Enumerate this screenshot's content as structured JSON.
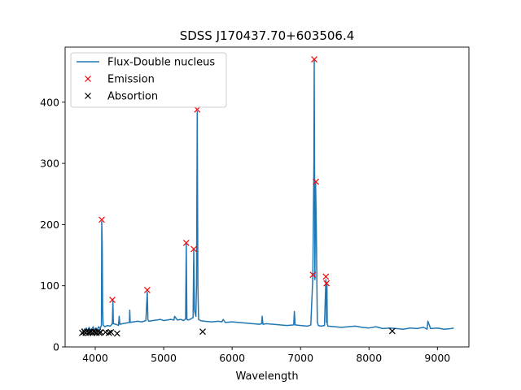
{
  "chart_data": {
    "type": "line",
    "title": "SDSS J170437.70+603506.4",
    "xlabel": "Wavelength",
    "ylabel": "",
    "xlim": [
      3560,
      9460
    ],
    "ylim": [
      0,
      490
    ],
    "xticks": [
      4000,
      5000,
      6000,
      7000,
      8000,
      9000
    ],
    "yticks": [
      0,
      100,
      200,
      300,
      400
    ],
    "legend_position": "upper-left",
    "series": [
      {
        "name": "Flux-Double nucleus",
        "kind": "line",
        "color": "#1f77b4",
        "x": [
          3810,
          3830,
          3850,
          3870,
          3890,
          3910,
          3930,
          3950,
          3970,
          3990,
          4010,
          4030,
          4050,
          4070,
          4090,
          4095,
          4102,
          4108,
          4115,
          4140,
          4180,
          4220,
          4250,
          4258,
          4265,
          4300,
          4340,
          4350,
          4360,
          4400,
          4450,
          4500,
          4505,
          4510,
          4560,
          4620,
          4680,
          4740,
          4760,
          4770,
          4780,
          4830,
          4900,
          4950,
          5000,
          5050,
          5100,
          5150,
          5160,
          5200,
          5250,
          5290,
          5320,
          5330,
          5340,
          5360,
          5400,
          5430,
          5440,
          5450,
          5470,
          5480,
          5490,
          5500,
          5510,
          5540,
          5600,
          5700,
          5800,
          5850,
          5870,
          5900,
          6000,
          6100,
          6200,
          6300,
          6400,
          6430,
          6440,
          6450,
          6500,
          6600,
          6700,
          6800,
          6900,
          6910,
          6920,
          7000,
          7100,
          7150,
          7180,
          7195,
          7200,
          7205,
          7210,
          7220,
          7230,
          7245,
          7260,
          7300,
          7350,
          7370,
          7375,
          7380,
          7385,
          7390,
          7400,
          7500,
          7600,
          7700,
          7800,
          7900,
          8000,
          8100,
          8200,
          8300,
          8400,
          8500,
          8600,
          8700,
          8800,
          8850,
          8860,
          8900,
          9000,
          9100,
          9200,
          9240
        ],
        "y": [
          30,
          22,
          28,
          31,
          25,
          32,
          27,
          29,
          33,
          26,
          31,
          28,
          33,
          30,
          35,
          205,
          165,
          60,
          36,
          33,
          35,
          34,
          38,
          75,
          38,
          37,
          35,
          50,
          37,
          38,
          39,
          40,
          60,
          40,
          41,
          42,
          41,
          43,
          90,
          45,
          42,
          43,
          44,
          45,
          43,
          44,
          45,
          44,
          50,
          44,
          45,
          43,
          46,
          168,
          45,
          44,
          46,
          48,
          158,
          60,
          50,
          100,
          385,
          100,
          45,
          43,
          42,
          41,
          42,
          41,
          45,
          40,
          41,
          40,
          39,
          38,
          37,
          38,
          50,
          37,
          38,
          37,
          36,
          35,
          36,
          58,
          36,
          35,
          34,
          36,
          115,
          300,
          468,
          300,
          110,
          268,
          200,
          40,
          35,
          34,
          35,
          110,
          95,
          40,
          105,
          38,
          34,
          33,
          32,
          33,
          34,
          32,
          31,
          33,
          30,
          31,
          30,
          29,
          31,
          30,
          32,
          29,
          42,
          30,
          31,
          29,
          30,
          31
        ]
      },
      {
        "name": "Emission",
        "kind": "marker",
        "marker": "x",
        "color": "#ff0000",
        "x": [
          4095,
          4250,
          4760,
          5330,
          5440,
          5490,
          7180,
          7200,
          7225,
          7370,
          7380
        ],
        "y": [
          208,
          77,
          93,
          170,
          160,
          388,
          118,
          470,
          270,
          115,
          104
        ]
      },
      {
        "name": "Absortion",
        "kind": "marker",
        "marker": "x",
        "color": "#000000",
        "x": [
          3810,
          3840,
          3860,
          3880,
          3900,
          3920,
          3940,
          3960,
          3980,
          4000,
          4020,
          4040,
          4060,
          4080,
          4150,
          4200,
          4230,
          4320,
          5570,
          8340
        ],
        "y": [
          23,
          25,
          23,
          25,
          23,
          24,
          25,
          23,
          25,
          24,
          23,
          25,
          23,
          24,
          24,
          23,
          24,
          22,
          25,
          26
        ]
      }
    ]
  }
}
